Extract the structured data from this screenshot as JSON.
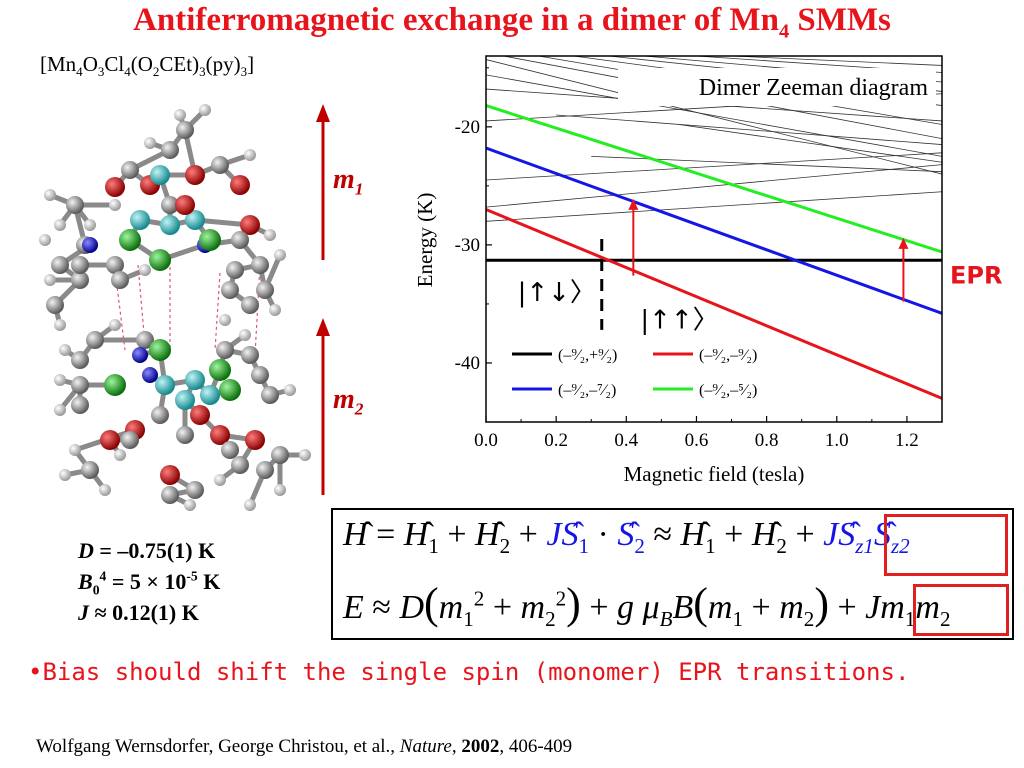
{
  "slide": {
    "title_main": "Antiferromagnetic exchange in a dimer of Mn",
    "title_sub": "4",
    "title_end": " SMMs",
    "formula": {
      "parts": [
        "[Mn",
        "4",
        "O",
        "3",
        "Cl",
        "4",
        "(O",
        "2",
        "CEt)",
        "3",
        "(py)",
        "3",
        "]"
      ]
    },
    "m1_label": "m",
    "m1_sub": "1",
    "m2_label": "m",
    "m2_sub": "2",
    "params": {
      "D_label": "D",
      "D_value": " = –0.75(1) K",
      "B_label": "B",
      "B_sub": "0",
      "B_sup": "4",
      "B_value": " = 5 × 10",
      "B_exp": "-5",
      "B_unit": " K",
      "J_label": "J",
      "J_value": " ≈ 0.12(1) K"
    },
    "bullet": "•Bias should shift the single spin (monomer) EPR transitions.",
    "citation": {
      "authors": "Wolfgang Wernsdorfer, George Christou, et al., ",
      "journal": "Nature",
      "sep": ", ",
      "year": "2002",
      "pages": ", 406-409"
    },
    "colors": {
      "title": "#e8141b",
      "arrow": "#c00000",
      "eq_blue": "#1515e6",
      "box_red": "#e02020"
    }
  },
  "chart_data": {
    "type": "line",
    "title": "Dimer Zeeman diagram",
    "xlabel": "Magnetic field (tesla)",
    "ylabel": "Energy (K)",
    "xlim": [
      0,
      1.3
    ],
    "ylim": [
      -45,
      -14
    ],
    "xticks": [
      "0.0",
      "0.2",
      "0.4",
      "0.6",
      "0.8",
      "1.0",
      "1.2"
    ],
    "yticks": [
      "-20",
      "-30",
      "-40"
    ],
    "grid": false,
    "series": [
      {
        "name": "(–⁹⁄₂,+⁹⁄₂)",
        "color": "#000000",
        "points": [
          [
            0,
            -31.3
          ],
          [
            1.3,
            -31.3
          ]
        ]
      },
      {
        "name": "(–⁹⁄₂,–⁹⁄₂)",
        "color": "#e8141b",
        "points": [
          [
            0,
            -27.0
          ],
          [
            1.3,
            -43.0
          ]
        ]
      },
      {
        "name": "(–⁹⁄₂,–⁷⁄₂)",
        "color": "#1515e6",
        "points": [
          [
            0,
            -21.8
          ],
          [
            1.3,
            -35.8
          ]
        ]
      },
      {
        "name": "(–⁹⁄₂,–⁵⁄₂)",
        "color": "#22ee22",
        "points": [
          [
            0,
            -18.2
          ],
          [
            1.3,
            -30.6
          ]
        ]
      }
    ],
    "background_levels": [
      [
        [
          0.0,
          -14.3
        ],
        [
          1.3,
          -24.0
        ]
      ],
      [
        [
          0.0,
          -15.6
        ],
        [
          1.3,
          -22.5
        ]
      ],
      [
        [
          0.05,
          -14.0
        ],
        [
          1.3,
          -21.0
        ]
      ],
      [
        [
          0.15,
          -14.0
        ],
        [
          1.3,
          -19.8
        ]
      ],
      [
        [
          0.25,
          -14.0
        ],
        [
          1.3,
          -18.2
        ]
      ],
      [
        [
          0.0,
          -16.8
        ],
        [
          1.3,
          -19.5
        ]
      ],
      [
        [
          0.35,
          -14.0
        ],
        [
          1.3,
          -17.0
        ]
      ],
      [
        [
          0.45,
          -14.0
        ],
        [
          1.3,
          -16.2
        ]
      ],
      [
        [
          0.6,
          -14.0
        ],
        [
          1.3,
          -15.4
        ]
      ],
      [
        [
          0.0,
          -19.5
        ],
        [
          1.3,
          -17.2
        ]
      ],
      [
        [
          0.0,
          -24.5
        ],
        [
          1.3,
          -22.2
        ]
      ],
      [
        [
          0.0,
          -26.8
        ],
        [
          1.3,
          -23.2
        ]
      ],
      [
        [
          0.3,
          -22.5
        ],
        [
          1.3,
          -23.8
        ]
      ],
      [
        [
          0.2,
          -19.0
        ],
        [
          1.3,
          -21.5
        ]
      ],
      [
        [
          0.7,
          -14.0
        ],
        [
          1.3,
          -14.8
        ]
      ],
      [
        [
          0.55,
          -19.8
        ],
        [
          1.3,
          -23.0
        ]
      ],
      [
        [
          0.0,
          -28.0
        ],
        [
          1.3,
          -25.5
        ]
      ]
    ],
    "annotations": [
      {
        "text": "|↑↓〉",
        "x": 0.09,
        "y": -34.0
      },
      {
        "text": "|↑↑〉",
        "x": 0.44,
        "y": -36.3
      },
      {
        "text": "EPR",
        "side": "right",
        "y": -32.5,
        "color": "#e8141b"
      }
    ],
    "dashed_marker_x": 0.33,
    "epr_arrows": [
      {
        "x": 0.42,
        "from": -32.6,
        "to": -26.1
      },
      {
        "x": 1.19,
        "from": -34.8,
        "to": -29.4
      }
    ]
  },
  "equations": {
    "eq1": {
      "H": "H",
      "H1": "H",
      "one": "1",
      "plus": "+",
      "H2": "H",
      "two": "2",
      "J": "J",
      "S": "S",
      "dot": "·",
      "approx": "≈",
      "z1": "z1",
      "z2": "z2"
    },
    "eq2": {
      "E": "E",
      "approx": "≈",
      "D": "D",
      "m": "m",
      "one": "1",
      "two": "2",
      "sq": "2",
      "g": "g",
      "mu": "μ",
      "B_sub": "B",
      "B": "B",
      "J": "J",
      "plus": "+"
    }
  }
}
